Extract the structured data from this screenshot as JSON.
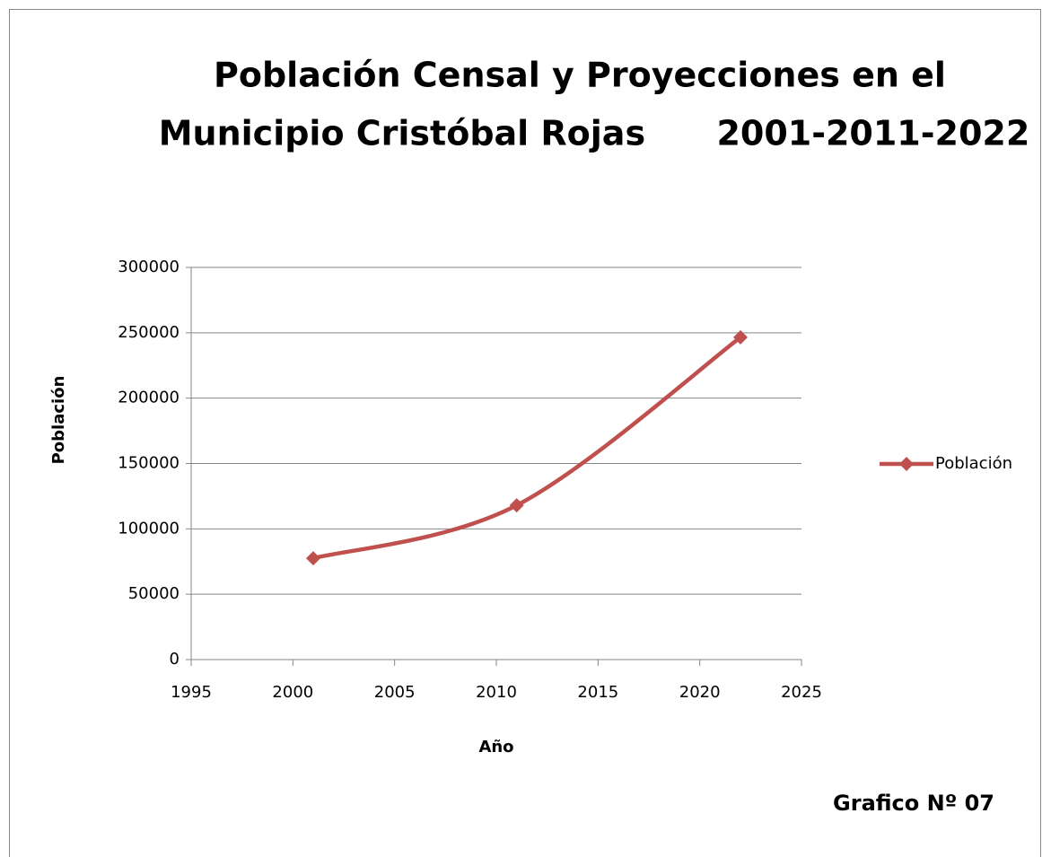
{
  "chart_data": {
    "type": "line",
    "title": [
      "Población Censal y Proyecciones en el",
      "Municipio Cristóbal Rojas      2001-2011-2022"
    ],
    "x_label": "Año",
    "y_label": "Población",
    "annotation": "Grafico Nº 07",
    "x": [
      2001,
      2011,
      2022
    ],
    "series": [
      {
        "name": "Población",
        "color": "#c0504d",
        "values": [
          77500,
          118000,
          246500
        ]
      }
    ],
    "xlim": [
      1995,
      2025
    ],
    "xticks": [
      1995,
      2000,
      2005,
      2010,
      2015,
      2020,
      2025
    ],
    "ylim": [
      0,
      300000
    ],
    "yticks": [
      0,
      50000,
      100000,
      150000,
      200000,
      250000,
      300000
    ],
    "grid": true,
    "smooth": true,
    "legend": "right"
  }
}
